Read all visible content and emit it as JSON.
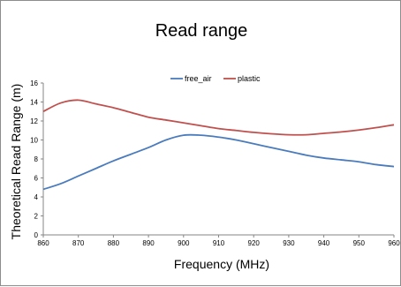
{
  "chart_data": {
    "type": "line",
    "title": "Read range",
    "xlabel": "Frequency (MHz)",
    "ylabel": "Theoretical Read Range (m)",
    "xlim": [
      860,
      960
    ],
    "ylim": [
      0,
      16
    ],
    "x_ticks": [
      "860",
      "870",
      "880",
      "890",
      "900",
      "910",
      "920",
      "930",
      "940",
      "950",
      "960"
    ],
    "y_ticks": [
      "0",
      "2",
      "4",
      "6",
      "8",
      "10",
      "12",
      "14",
      "16"
    ],
    "x": [
      860,
      865,
      870,
      875,
      880,
      885,
      890,
      895,
      900,
      905,
      910,
      915,
      920,
      925,
      930,
      935,
      940,
      945,
      950,
      955,
      960
    ],
    "series": [
      {
        "name": "free_air",
        "color": "#4a7bbd",
        "values": [
          4.8,
          5.4,
          6.2,
          7.0,
          7.8,
          8.5,
          9.2,
          10.0,
          10.5,
          10.5,
          10.3,
          10.0,
          9.6,
          9.2,
          8.8,
          8.4,
          8.1,
          7.9,
          7.7,
          7.4,
          7.2
        ]
      },
      {
        "name": "plastic",
        "color": "#c0504d",
        "values": [
          13.0,
          13.9,
          14.2,
          13.8,
          13.4,
          12.9,
          12.4,
          12.1,
          11.8,
          11.5,
          11.2,
          11.0,
          10.8,
          10.65,
          10.55,
          10.55,
          10.7,
          10.85,
          11.05,
          11.3,
          11.6
        ]
      }
    ],
    "legend_position": "top-center",
    "grid": false
  }
}
